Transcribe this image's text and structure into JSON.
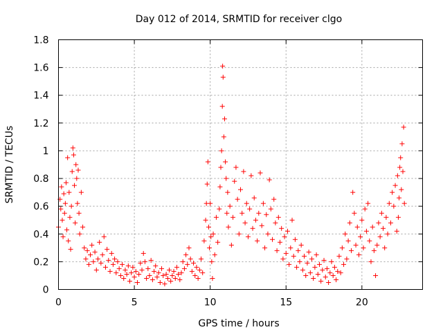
{
  "chart_data": {
    "type": "scatter",
    "title": "Day 012 of 2014, SRMTID for receiver clgo",
    "xlabel": "GPS time / hours",
    "ylabel": "SRMTID / TECUs",
    "xlim": [
      0,
      24
    ],
    "ylim": [
      0,
      1.8
    ],
    "xticks": [
      0,
      5,
      10,
      15,
      20
    ],
    "xtick_labels": [
      "0",
      "5",
      "10",
      "15",
      "20"
    ],
    "yticks": [
      0,
      0.2,
      0.4,
      0.6,
      0.8,
      1,
      1.2,
      1.4,
      1.6,
      1.8
    ],
    "ytick_labels": [
      "0",
      "0.2",
      "0.4",
      "0.6",
      "0.8",
      "1",
      "1.2",
      "1.4",
      "1.6",
      "1.8"
    ],
    "grid": true,
    "marker": "+",
    "series": [
      {
        "name": "SRMTID",
        "color": "#ff0000",
        "points": [
          [
            0.0,
            0.45
          ],
          [
            0.1,
            0.65
          ],
          [
            0.15,
            0.58
          ],
          [
            0.2,
            0.74
          ],
          [
            0.25,
            0.5
          ],
          [
            0.3,
            0.38
          ],
          [
            0.35,
            0.69
          ],
          [
            0.4,
            0.55
          ],
          [
            0.45,
            0.62
          ],
          [
            0.5,
            0.77
          ],
          [
            0.55,
            0.43
          ],
          [
            0.6,
            0.95
          ],
          [
            0.65,
            0.35
          ],
          [
            0.7,
            0.7
          ],
          [
            0.75,
            0.52
          ],
          [
            0.8,
            0.29
          ],
          [
            0.85,
            0.6
          ],
          [
            0.9,
            0.85
          ],
          [
            0.95,
            1.02
          ],
          [
            1.0,
            0.97
          ],
          [
            1.05,
            0.75
          ],
          [
            1.1,
            0.48
          ],
          [
            1.15,
            0.9
          ],
          [
            1.2,
            0.8
          ],
          [
            1.25,
            0.62
          ],
          [
            1.3,
            0.86
          ],
          [
            1.35,
            0.55
          ],
          [
            1.4,
            0.4
          ],
          [
            1.5,
            0.7
          ],
          [
            1.6,
            0.45
          ],
          [
            1.7,
            0.3
          ],
          [
            1.8,
            0.22
          ],
          [
            1.9,
            0.28
          ],
          [
            2.0,
            0.18
          ],
          [
            2.1,
            0.25
          ],
          [
            2.2,
            0.32
          ],
          [
            2.3,
            0.2
          ],
          [
            2.4,
            0.27
          ],
          [
            2.5,
            0.14
          ],
          [
            2.6,
            0.22
          ],
          [
            2.7,
            0.34
          ],
          [
            2.8,
            0.19
          ],
          [
            2.9,
            0.25
          ],
          [
            3.0,
            0.38
          ],
          [
            3.1,
            0.16
          ],
          [
            3.2,
            0.29
          ],
          [
            3.3,
            0.21
          ],
          [
            3.4,
            0.13
          ],
          [
            3.5,
            0.26
          ],
          [
            3.6,
            0.18
          ],
          [
            3.7,
            0.22
          ],
          [
            3.8,
            0.12
          ],
          [
            3.9,
            0.2
          ],
          [
            4.0,
            0.15
          ],
          [
            4.1,
            0.1
          ],
          [
            4.2,
            0.18
          ],
          [
            4.3,
            0.08
          ],
          [
            4.4,
            0.14
          ],
          [
            4.5,
            0.11
          ],
          [
            4.6,
            0.17
          ],
          [
            4.7,
            0.06
          ],
          [
            4.8,
            0.12
          ],
          [
            4.9,
            0.16
          ],
          [
            5.0,
            0.09
          ],
          [
            5.1,
            0.13
          ],
          [
            5.2,
            0.05
          ],
          [
            5.3,
            0.11
          ],
          [
            5.4,
            0.19
          ],
          [
            5.5,
            0.14
          ],
          [
            5.6,
            0.26
          ],
          [
            5.7,
            0.2
          ],
          [
            5.8,
            0.08
          ],
          [
            5.9,
            0.15
          ],
          [
            6.0,
            0.1
          ],
          [
            6.1,
            0.21
          ],
          [
            6.2,
            0.07
          ],
          [
            6.3,
            0.13
          ],
          [
            6.4,
            0.17
          ],
          [
            6.5,
            0.09
          ],
          [
            6.6,
            0.12
          ],
          [
            6.7,
            0.05
          ],
          [
            6.8,
            0.15
          ],
          [
            6.9,
            0.1
          ],
          [
            7.0,
            0.04
          ],
          [
            7.1,
            0.11
          ],
          [
            7.2,
            0.08
          ],
          [
            7.3,
            0.14
          ],
          [
            7.4,
            0.06
          ],
          [
            7.5,
            0.1
          ],
          [
            7.6,
            0.13
          ],
          [
            7.7,
            0.08
          ],
          [
            7.8,
            0.16
          ],
          [
            7.9,
            0.11
          ],
          [
            8.0,
            0.07
          ],
          [
            8.1,
            0.12
          ],
          [
            8.2,
            0.2
          ],
          [
            8.3,
            0.15
          ],
          [
            8.4,
            0.25
          ],
          [
            8.5,
            0.18
          ],
          [
            8.6,
            0.3
          ],
          [
            8.7,
            0.22
          ],
          [
            8.8,
            0.13
          ],
          [
            8.9,
            0.19
          ],
          [
            9.0,
            0.1
          ],
          [
            9.1,
            0.16
          ],
          [
            9.2,
            0.08
          ],
          [
            9.3,
            0.14
          ],
          [
            9.4,
            0.22
          ],
          [
            9.5,
            0.12
          ],
          [
            9.6,
            0.35
          ],
          [
            9.7,
            0.5
          ],
          [
            9.75,
            0.62
          ],
          [
            9.8,
            0.76
          ],
          [
            9.85,
            0.92
          ],
          [
            9.9,
            0.45
          ],
          [
            9.95,
            0.3
          ],
          [
            10.0,
            0.62
          ],
          [
            10.05,
            0.38
          ],
          [
            10.1,
            0.2
          ],
          [
            10.15,
            0.08
          ],
          [
            10.2,
            0.4
          ],
          [
            10.3,
            0.25
          ],
          [
            10.4,
            0.52
          ],
          [
            10.5,
            0.34
          ],
          [
            10.6,
            0.58
          ],
          [
            10.65,
            0.74
          ],
          [
            10.7,
            0.88
          ],
          [
            10.75,
            1.0
          ],
          [
            10.8,
            1.32
          ],
          [
            10.82,
            1.61
          ],
          [
            10.85,
            1.53
          ],
          [
            10.9,
            1.1
          ],
          [
            10.95,
            1.23
          ],
          [
            11.0,
            0.92
          ],
          [
            11.05,
            0.8
          ],
          [
            11.1,
            0.55
          ],
          [
            11.15,
            0.7
          ],
          [
            11.2,
            0.45
          ],
          [
            11.3,
            0.6
          ],
          [
            11.4,
            0.32
          ],
          [
            11.5,
            0.52
          ],
          [
            11.6,
            0.78
          ],
          [
            11.7,
            0.88
          ],
          [
            11.8,
            0.65
          ],
          [
            11.9,
            0.4
          ],
          [
            12.0,
            0.72
          ],
          [
            12.1,
            0.55
          ],
          [
            12.2,
            0.85
          ],
          [
            12.3,
            0.48
          ],
          [
            12.4,
            0.62
          ],
          [
            12.5,
            0.38
          ],
          [
            12.6,
            0.58
          ],
          [
            12.7,
            0.82
          ],
          [
            12.8,
            0.44
          ],
          [
            12.9,
            0.66
          ],
          [
            13.0,
            0.5
          ],
          [
            13.1,
            0.35
          ],
          [
            13.2,
            0.55
          ],
          [
            13.3,
            0.84
          ],
          [
            13.4,
            0.46
          ],
          [
            13.5,
            0.62
          ],
          [
            13.6,
            0.3
          ],
          [
            13.7,
            0.54
          ],
          [
            13.8,
            0.4
          ],
          [
            13.9,
            0.79
          ],
          [
            14.0,
            0.58
          ],
          [
            14.1,
            0.36
          ],
          [
            14.2,
            0.65
          ],
          [
            14.3,
            0.48
          ],
          [
            14.4,
            0.28
          ],
          [
            14.5,
            0.52
          ],
          [
            14.6,
            0.34
          ],
          [
            14.7,
            0.44
          ],
          [
            14.8,
            0.22
          ],
          [
            14.9,
            0.38
          ],
          [
            15.0,
            0.26
          ],
          [
            15.1,
            0.42
          ],
          [
            15.2,
            0.18
          ],
          [
            15.3,
            0.3
          ],
          [
            15.4,
            0.5
          ],
          [
            15.5,
            0.24
          ],
          [
            15.6,
            0.36
          ],
          [
            15.7,
            0.16
          ],
          [
            15.8,
            0.28
          ],
          [
            15.9,
            0.2
          ],
          [
            16.0,
            0.32
          ],
          [
            16.1,
            0.14
          ],
          [
            16.2,
            0.24
          ],
          [
            16.3,
            0.1
          ],
          [
            16.4,
            0.19
          ],
          [
            16.5,
            0.27
          ],
          [
            16.6,
            0.12
          ],
          [
            16.7,
            0.22
          ],
          [
            16.8,
            0.08
          ],
          [
            16.9,
            0.16
          ],
          [
            17.0,
            0.25
          ],
          [
            17.1,
            0.11
          ],
          [
            17.2,
            0.18
          ],
          [
            17.3,
            0.06
          ],
          [
            17.4,
            0.14
          ],
          [
            17.5,
            0.21
          ],
          [
            17.6,
            0.09
          ],
          [
            17.7,
            0.15
          ],
          [
            17.8,
            0.05
          ],
          [
            17.9,
            0.12
          ],
          [
            18.0,
            0.2
          ],
          [
            18.1,
            0.1
          ],
          [
            18.2,
            0.16
          ],
          [
            18.3,
            0.07
          ],
          [
            18.4,
            0.13
          ],
          [
            18.5,
            0.24
          ],
          [
            18.6,
            0.12
          ],
          [
            18.7,
            0.3
          ],
          [
            18.8,
            0.18
          ],
          [
            18.9,
            0.4
          ],
          [
            19.0,
            0.22
          ],
          [
            19.1,
            0.35
          ],
          [
            19.2,
            0.48
          ],
          [
            19.3,
            0.28
          ],
          [
            19.4,
            0.7
          ],
          [
            19.5,
            0.55
          ],
          [
            19.6,
            0.32
          ],
          [
            19.7,
            0.45
          ],
          [
            19.8,
            0.25
          ],
          [
            19.9,
            0.38
          ],
          [
            20.0,
            0.5
          ],
          [
            20.1,
            0.3
          ],
          [
            20.2,
            0.58
          ],
          [
            20.3,
            0.42
          ],
          [
            20.4,
            0.62
          ],
          [
            20.5,
            0.35
          ],
          [
            20.6,
            0.2
          ],
          [
            20.7,
            0.45
          ],
          [
            20.8,
            0.28
          ],
          [
            20.9,
            0.1
          ],
          [
            21.0,
            0.32
          ],
          [
            21.1,
            0.48
          ],
          [
            21.2,
            0.38
          ],
          [
            21.3,
            0.55
          ],
          [
            21.4,
            0.44
          ],
          [
            21.5,
            0.3
          ],
          [
            21.6,
            0.52
          ],
          [
            21.7,
            0.4
          ],
          [
            21.8,
            0.62
          ],
          [
            21.9,
            0.48
          ],
          [
            22.0,
            0.7
          ],
          [
            22.1,
            0.6
          ],
          [
            22.2,
            0.75
          ],
          [
            22.3,
            0.42
          ],
          [
            22.35,
            0.82
          ],
          [
            22.4,
            0.52
          ],
          [
            22.45,
            0.66
          ],
          [
            22.5,
            0.88
          ],
          [
            22.55,
            0.95
          ],
          [
            22.6,
            0.72
          ],
          [
            22.65,
            1.05
          ],
          [
            22.7,
            0.85
          ],
          [
            22.75,
            1.17
          ],
          [
            22.8,
            0.62
          ]
        ]
      }
    ]
  }
}
